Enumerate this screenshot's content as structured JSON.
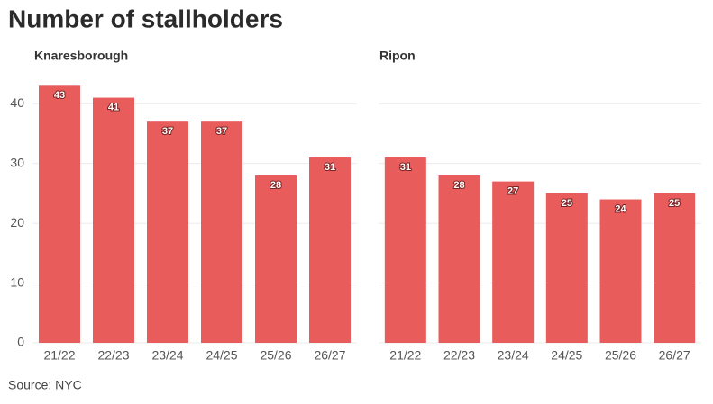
{
  "title": "Number of stallholders",
  "source": "Source: NYC",
  "chart_data": [
    {
      "type": "bar",
      "title": "Knaresborough",
      "categories": [
        "21/22",
        "22/23",
        "23/24",
        "24/25",
        "25/26",
        "26/27"
      ],
      "values": [
        43,
        41,
        37,
        37,
        28,
        31
      ],
      "color": "#e85d5c",
      "ylim": [
        0,
        45
      ],
      "yticks": [
        0,
        10,
        20,
        30,
        40
      ],
      "grid": true
    },
    {
      "type": "bar",
      "title": "Ripon",
      "categories": [
        "21/22",
        "22/23",
        "23/24",
        "24/25",
        "25/26",
        "26/27"
      ],
      "values": [
        31,
        28,
        27,
        25,
        24,
        25
      ],
      "color": "#e85d5c",
      "ylim": [
        0,
        45
      ],
      "grid": true
    }
  ]
}
